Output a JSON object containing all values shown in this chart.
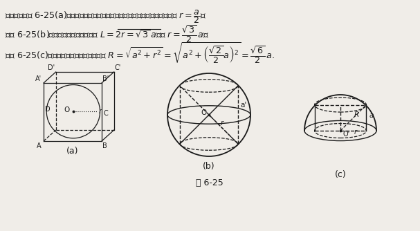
{
  "background_color": "#f0ede8",
  "text_color": "#1a1a1a",
  "fig_width": 6.07,
  "fig_height": 3.34,
  "dpi": 100,
  "caption": "图 6-25",
  "label_a": "(a)",
  "label_b": "(b)",
  "label_c": "(c)"
}
